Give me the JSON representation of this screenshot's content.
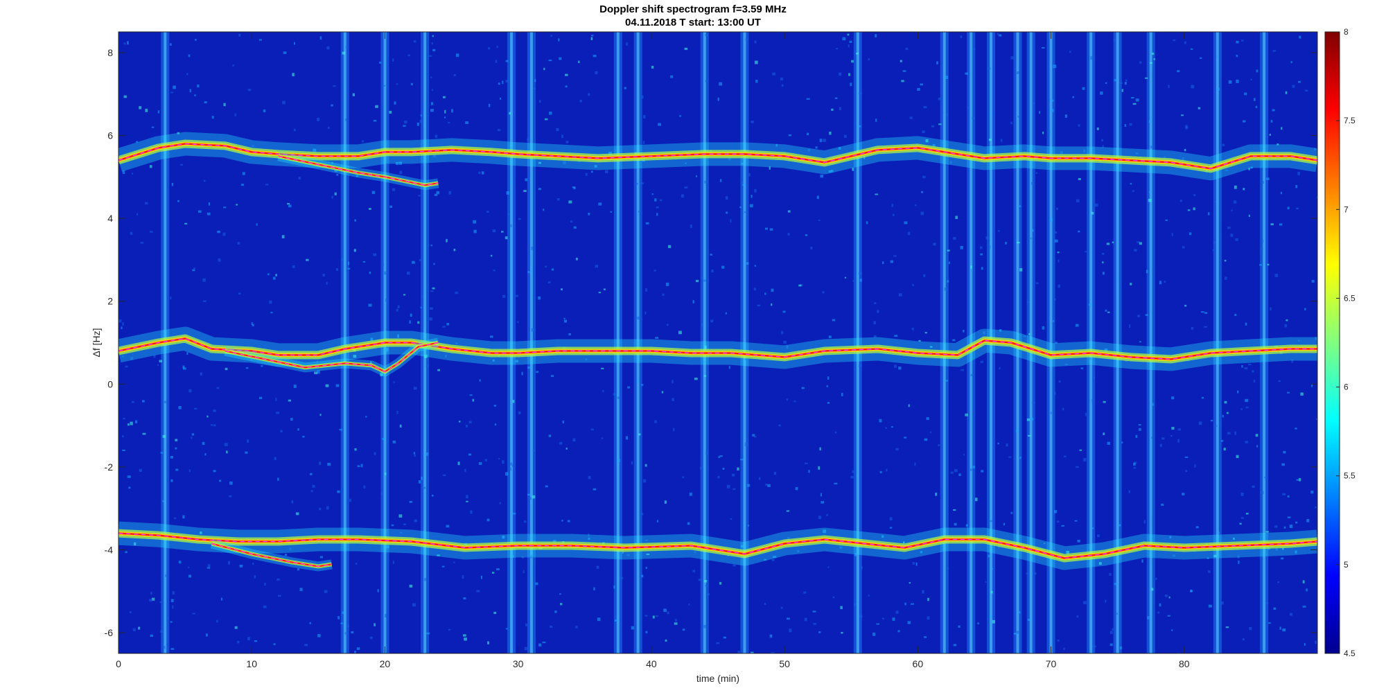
{
  "chart_data": {
    "type": "heatmap",
    "title": "Doppler shift spectrogram f=3.59 MHz",
    "subtitle": "04.11.2018    T start: 13:00 UT",
    "xlabel": "time (min)",
    "ylabel": "Δf [Hz]",
    "xlim": [
      0,
      90
    ],
    "ylim": [
      -6.5,
      8.5
    ],
    "xticks": [
      "0",
      "10",
      "20",
      "30",
      "40",
      "50",
      "60",
      "70",
      "80"
    ],
    "yticks": [
      "-6",
      "-4",
      "-2",
      "0",
      "2",
      "4",
      "6",
      "8"
    ],
    "colorbar": {
      "range": [
        4.5,
        8
      ],
      "ticks": [
        "4.5",
        "5",
        "5.5",
        "6",
        "6.5",
        "7",
        "7.5",
        "8"
      ],
      "colormap": "jet"
    },
    "background_level": 4.75,
    "noise_columns_min": [
      3.5,
      17,
      20,
      23,
      29.5,
      31,
      37.5,
      39,
      44,
      47,
      55.5,
      62,
      64,
      65.5,
      67.5,
      68.5,
      70,
      73,
      75,
      77.5,
      82.5,
      86
    ],
    "traces": [
      {
        "x": [
          0,
          3,
          5,
          8,
          10,
          12,
          15,
          18,
          20,
          22,
          25,
          28,
          30,
          33,
          36,
          40,
          44,
          47,
          50,
          53,
          55,
          57,
          60,
          63,
          65,
          68,
          70,
          73,
          76,
          79,
          82,
          85,
          88,
          90
        ],
        "y": [
          5.4,
          5.7,
          5.8,
          5.75,
          5.6,
          5.55,
          5.5,
          5.5,
          5.6,
          5.6,
          5.65,
          5.6,
          5.55,
          5.5,
          5.45,
          5.5,
          5.55,
          5.55,
          5.5,
          5.35,
          5.5,
          5.65,
          5.7,
          5.55,
          5.45,
          5.5,
          5.45,
          5.45,
          5.4,
          5.35,
          5.2,
          5.5,
          5.5,
          5.4
        ]
      },
      {
        "x": [
          0,
          3,
          5,
          7,
          10,
          12,
          15,
          17,
          20,
          22,
          25,
          28,
          30,
          33,
          36,
          40,
          43,
          46,
          50,
          53,
          57,
          60,
          63,
          65,
          67,
          70,
          73,
          76,
          79,
          82,
          85,
          88,
          90
        ],
        "y": [
          0.8,
          1.0,
          1.1,
          0.85,
          0.8,
          0.7,
          0.7,
          0.85,
          1.0,
          1.0,
          0.85,
          0.75,
          0.75,
          0.8,
          0.8,
          0.8,
          0.75,
          0.75,
          0.65,
          0.8,
          0.85,
          0.75,
          0.7,
          1.05,
          1.0,
          0.7,
          0.75,
          0.65,
          0.6,
          0.75,
          0.8,
          0.85,
          0.85
        ]
      },
      {
        "x": [
          0,
          3,
          6,
          9,
          12,
          15,
          18,
          22,
          26,
          30,
          34,
          38,
          43,
          47,
          50,
          53,
          56,
          59,
          62,
          65,
          68,
          71,
          74,
          77,
          80,
          84,
          88,
          90
        ],
        "y": [
          -3.6,
          -3.65,
          -3.75,
          -3.8,
          -3.8,
          -3.75,
          -3.75,
          -3.8,
          -3.95,
          -3.9,
          -3.9,
          -3.95,
          -3.9,
          -4.1,
          -3.85,
          -3.75,
          -3.85,
          -3.95,
          -3.75,
          -3.75,
          -3.95,
          -4.2,
          -4.1,
          -3.9,
          -3.95,
          -3.9,
          -3.85,
          -3.8
        ]
      },
      {
        "x": [
          7,
          10,
          13,
          15,
          16
        ],
        "y": [
          -3.85,
          -4.1,
          -4.3,
          -4.4,
          -4.35
        ]
      },
      {
        "x": [
          8,
          11,
          14,
          17,
          19,
          20,
          21,
          22.5,
          24
        ],
        "y": [
          0.8,
          0.6,
          0.4,
          0.5,
          0.45,
          0.3,
          0.5,
          0.9,
          1.0
        ]
      },
      {
        "x": [
          12,
          15,
          18,
          20,
          21.5,
          23,
          24
        ],
        "y": [
          5.5,
          5.3,
          5.1,
          5.0,
          4.9,
          4.8,
          4.85
        ]
      }
    ]
  }
}
